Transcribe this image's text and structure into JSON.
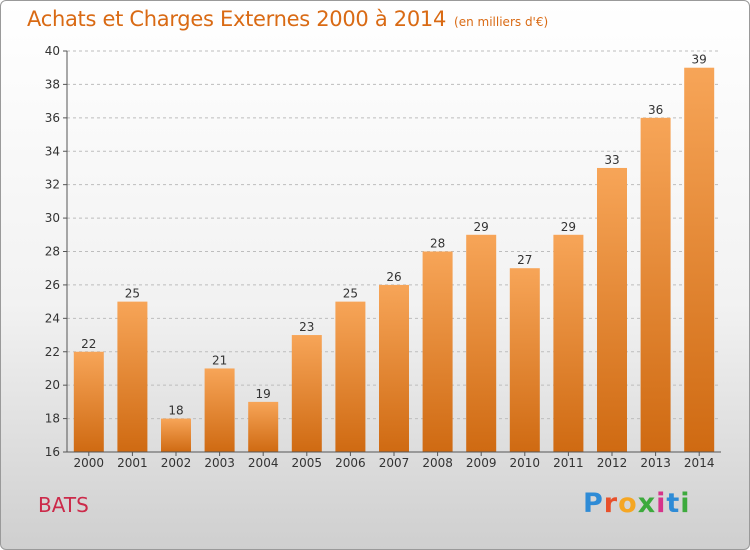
{
  "title": "Achats et Charges Externes 2000 à 2014",
  "unit": "(en milliers d'€)",
  "commune": "BATS",
  "logo": {
    "letters": [
      "P",
      "r",
      "o",
      "x",
      "i",
      "t",
      "i"
    ],
    "colors": [
      "#2e8bd6",
      "#e8502a",
      "#f5a623",
      "#3daa3d",
      "#d6338a",
      "#2e8bd6",
      "#3daa3d"
    ]
  },
  "colors": {
    "bar": "#f28c2c",
    "bar_light": "#f7a558",
    "bar_dark": "#cf6a12",
    "title": "#d96a14",
    "commune": "#cc2a4a"
  },
  "chart_data": {
    "type": "bar",
    "title": "Achats et Charges Externes 2000 à 2014",
    "subtitle": "(en milliers d'€)",
    "categories": [
      "2000",
      "2001",
      "2002",
      "2003",
      "2004",
      "2005",
      "2006",
      "2007",
      "2008",
      "2009",
      "2010",
      "2011",
      "2012",
      "2013",
      "2014"
    ],
    "values": [
      22,
      25,
      18,
      21,
      19,
      23,
      25,
      26,
      28,
      29,
      27,
      29,
      33,
      36,
      39
    ],
    "ylim": [
      16,
      40
    ],
    "yticks": [
      16,
      18,
      20,
      22,
      24,
      26,
      28,
      30,
      32,
      34,
      36,
      38,
      40
    ],
    "grid": true,
    "data_labels": true
  }
}
